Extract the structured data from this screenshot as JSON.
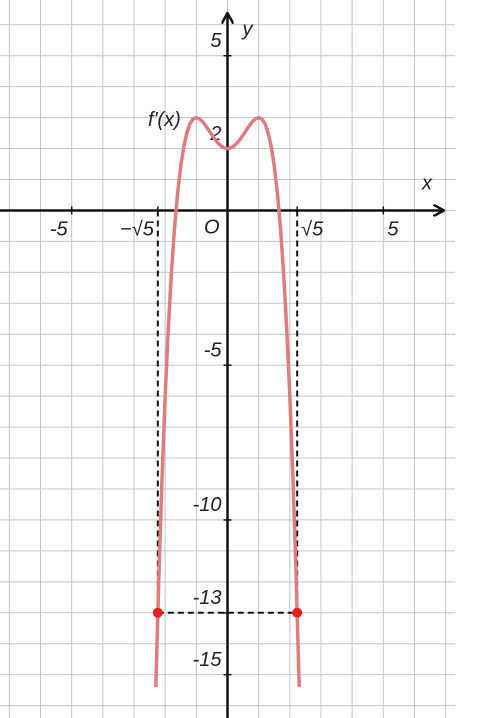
{
  "chart_data": {
    "type": "line",
    "x_label": "x",
    "y_label": "y",
    "origin_label": "O",
    "annotation": "f'(x)",
    "x": [
      -2.3,
      -2.2,
      -2.1,
      -2.0,
      -1.9,
      -1.8,
      -1.7,
      -1.6,
      -1.5,
      -1.4,
      -1.3,
      -1.2,
      -1.1,
      -1.0,
      -0.9,
      -0.8,
      -0.7,
      -0.6,
      -0.5,
      -0.4,
      -0.3,
      -0.2,
      -0.1,
      0,
      0.1,
      0.2,
      0.3,
      0.4,
      0.5,
      0.6,
      0.7,
      0.8,
      0.9,
      1.0,
      1.1,
      1.2,
      1.3,
      1.4,
      1.5,
      1.6,
      1.7,
      1.8,
      1.9,
      2.0,
      2.1,
      2.2,
      2.3
    ],
    "series": [
      {
        "name": "f'(x)",
        "color": "#e07c80",
        "values": [
          -15.4,
          -11.75,
          -8.63,
          -6,
          -3.81,
          -2.02,
          -0.57,
          0.57,
          1.44,
          2.08,
          2.52,
          2.81,
          2.96,
          3,
          2.96,
          2.87,
          2.74,
          2.59,
          2.44,
          2.29,
          2.17,
          2.08,
          2.02,
          2,
          2.02,
          2.08,
          2.17,
          2.29,
          2.44,
          2.59,
          2.74,
          2.87,
          2.96,
          3,
          2.96,
          2.81,
          2.52,
          2.08,
          1.44,
          0.57,
          -0.57,
          -2.02,
          -3.81,
          -6,
          -8.63,
          -11.75,
          -15.4
        ]
      }
    ],
    "points": {
      "x": [
        -2.236,
        2.236
      ],
      "values": [
        -13,
        -13
      ],
      "color": "#e8201e"
    },
    "xlim": [
      -7.3,
      7.3
    ],
    "ylim": [
      -16.4,
      6.8
    ],
    "xticks": [
      -5,
      {
        "value": -2.236,
        "label": "−√5"
      },
      {
        "value": 2.236,
        "label": "√5"
      },
      5
    ],
    "yticks": [
      5,
      2,
      -5,
      -10,
      -13,
      -15
    ],
    "grid": true
  }
}
